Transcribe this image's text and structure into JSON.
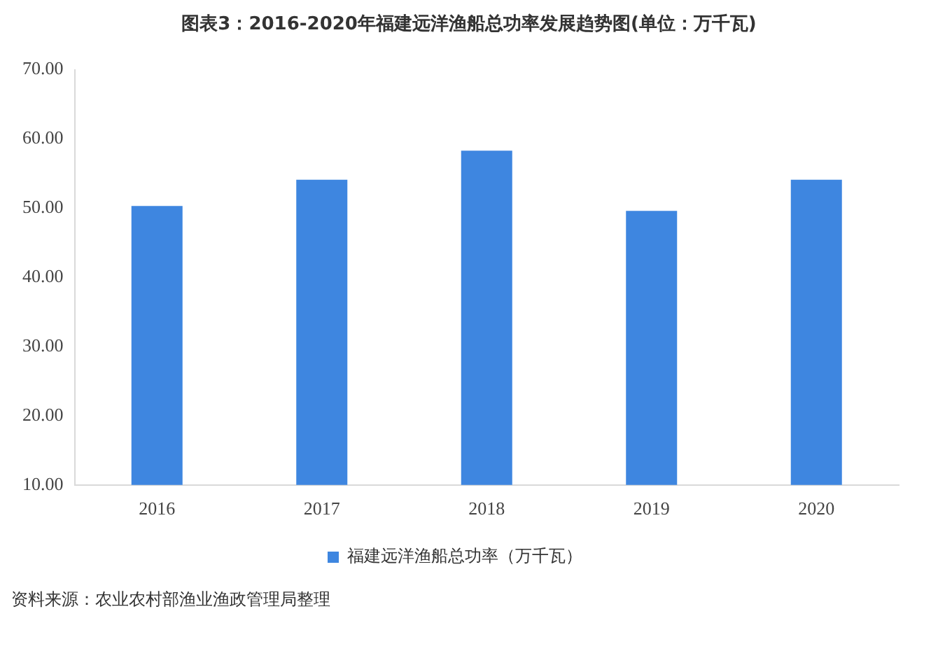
{
  "chart_data": {
    "type": "bar",
    "title": "图表3：2016-2020年福建远洋渔船总功率发展趋势图(单位：万千瓦)",
    "categories": [
      "2016",
      "2017",
      "2018",
      "2019",
      "2020"
    ],
    "series": [
      {
        "name": "福建远洋渔船总功率（万千瓦）",
        "color": "#3e86e0",
        "values": [
          50.3,
          54.1,
          58.3,
          49.6,
          54.1
        ]
      }
    ],
    "ylim": [
      10,
      70
    ],
    "yticks": [
      {
        "value": 10,
        "label": "10.00"
      },
      {
        "value": 20,
        "label": "20.00"
      },
      {
        "value": 30,
        "label": "30.00"
      },
      {
        "value": 40,
        "label": "40.00"
      },
      {
        "value": 50,
        "label": "50.00"
      },
      {
        "value": 60,
        "label": "60.00"
      },
      {
        "value": 70,
        "label": "70.00"
      }
    ],
    "grid": false,
    "legend": "bottom",
    "annotations": [
      "资料来源：农业农村部渔业渔政管理局整理"
    ]
  }
}
